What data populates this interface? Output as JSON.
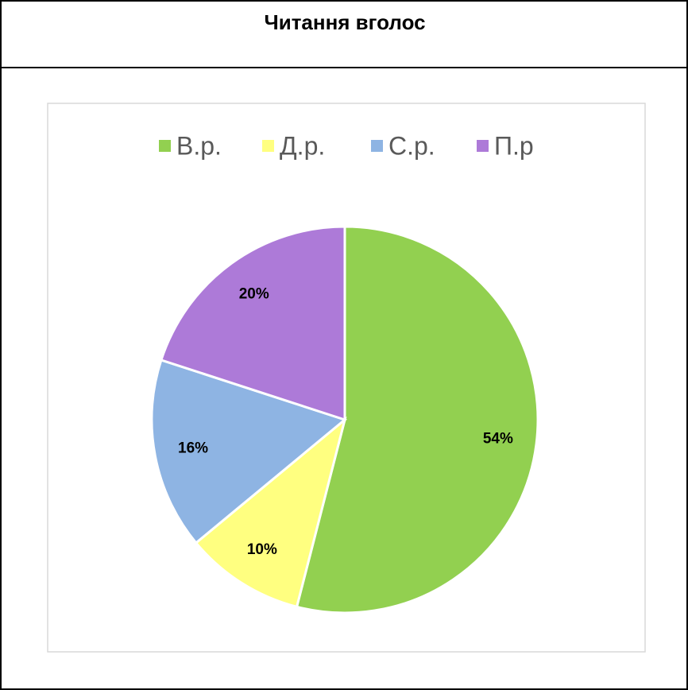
{
  "chart_data": {
    "type": "pie",
    "title": "Читання вголос",
    "categories": [
      "В.р.",
      "Д.р.",
      "С.р.",
      "П.р"
    ],
    "values": [
      54,
      10,
      16,
      20
    ],
    "value_labels": [
      "54%",
      "10%",
      "16%",
      "20%"
    ],
    "colors": [
      "#92d050",
      "#ffff80",
      "#8eb4e3",
      "#ad7ad8"
    ],
    "legend": "top"
  }
}
